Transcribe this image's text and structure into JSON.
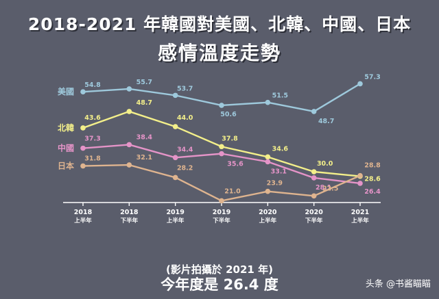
{
  "chart_data": {
    "type": "line",
    "title": "2018-2021 年韓國對美國、北韓、中國、日本",
    "subtitle": "感情溫度走勢",
    "categories": [
      [
        "2018",
        "上半年"
      ],
      [
        "2018",
        "下半年"
      ],
      [
        "2019",
        "上半年"
      ],
      [
        "2019",
        "下半年"
      ],
      [
        "2020",
        "上半年"
      ],
      [
        "2020",
        "下半年"
      ],
      [
        "2021",
        "上半年"
      ]
    ],
    "series": [
      {
        "name": "美國",
        "color": "#9ec9dc",
        "values": [
          54.8,
          55.7,
          53.7,
          50.6,
          51.5,
          48.7,
          57.3
        ]
      },
      {
        "name": "北韓",
        "color": "#f3ef8a",
        "values": [
          43.6,
          48.7,
          44.0,
          37.8,
          34.6,
          30.0,
          28.6
        ]
      },
      {
        "name": "中國",
        "color": "#e594c8",
        "values": [
          37.3,
          38.4,
          34.4,
          35.6,
          33.1,
          28.1,
          26.4
        ]
      },
      {
        "name": "日本",
        "color": "#dfb48f",
        "values": [
          31.8,
          32.1,
          28.2,
          21.0,
          23.9,
          22.5,
          28.8
        ]
      }
    ],
    "legend_placement": "left, beside line starts",
    "grid": false
  },
  "caption": {
    "line1": "(影片拍攝於 2021 年)",
    "line2": "今年度是 26.4 度"
  },
  "watermark": "头条 @书酱瞄瞄"
}
